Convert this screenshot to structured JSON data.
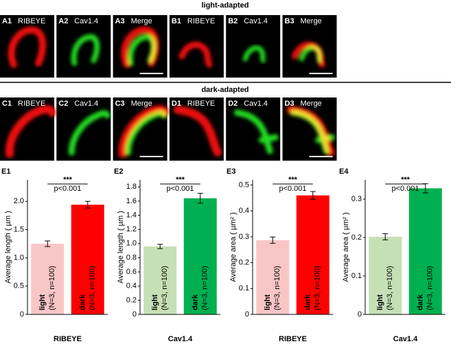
{
  "figure": {
    "rows": [
      {
        "title": "light-adapted",
        "panels": [
          {
            "id": "A1",
            "name": "RIBEYE"
          },
          {
            "id": "A2",
            "name": "Cav1.4"
          },
          {
            "id": "A3",
            "name": "Merge"
          },
          {
            "id": "B1",
            "name": "RIBEYE"
          },
          {
            "id": "B2",
            "name": "Cav1.4"
          },
          {
            "id": "B3",
            "name": "Merge"
          }
        ]
      },
      {
        "title": "dark-adapted",
        "panels": [
          {
            "id": "C1",
            "name": "RIBEYE"
          },
          {
            "id": "C2",
            "name": "Cav1.4"
          },
          {
            "id": "C3",
            "name": "Merge"
          },
          {
            "id": "D1",
            "name": "RIBEYE"
          },
          {
            "id": "D2",
            "name": "Cav1.4"
          },
          {
            "id": "D3",
            "name": "Merge"
          }
        ]
      }
    ]
  },
  "chart_data": [
    {
      "type": "bar",
      "panel": "E1",
      "ylabel": "Average length ( µm )",
      "xlabel": "RIBEYE",
      "significance": "***",
      "p_label": "p<0.001",
      "categories": [
        "light",
        "dark"
      ],
      "category_notes": [
        "(N=3, n=100)",
        "(N=3, n=100)"
      ],
      "values": [
        1.25,
        1.94
      ],
      "errors": [
        0.05,
        0.06
      ],
      "colors": [
        "#f9c6c6",
        "#ff0000"
      ],
      "ylim": [
        0,
        2.38
      ],
      "yticks": [
        0,
        0.5,
        {
          "value": 1,
          "label": "1.0"
        },
        1.5,
        {
          "value": 2,
          "label": "2.0"
        }
      ]
    },
    {
      "type": "bar",
      "panel": "E2",
      "ylabel": "Average length ( µm )",
      "xlabel": "Cav1.4",
      "significance": "***",
      "p_label": "p<0.001",
      "categories": [
        "light",
        "dark"
      ],
      "category_notes": [
        "(N=3, n=100)",
        "(N=3, n=100)"
      ],
      "values": [
        0.96,
        1.64
      ],
      "errors": [
        0.03,
        0.07
      ],
      "colors": [
        "#c6e0b6",
        "#00b050"
      ],
      "ylim": [
        0,
        1.9
      ],
      "yticks": [
        0,
        0.2,
        0.4,
        0.6,
        0.8,
        {
          "value": 1,
          "label": "1.0"
        },
        1.2,
        1.4,
        1.6,
        1.8
      ]
    },
    {
      "type": "bar",
      "panel": "E3",
      "ylabel": "Average area ( µm² )",
      "xlabel": "RIBEYE",
      "significance": "***",
      "p_label": "p<0.001",
      "categories": [
        "light",
        "dark"
      ],
      "category_notes": [
        "(N=3, n=100)",
        "(N=3, n=100)"
      ],
      "values": [
        0.287,
        0.46
      ],
      "errors": [
        0.012,
        0.015
      ],
      "colors": [
        "#f9c6c6",
        "#ff0000"
      ],
      "ylim": [
        0,
        0.52
      ],
      "yticks": [
        0,
        0.1,
        0.2,
        0.3,
        0.4,
        0.5
      ]
    },
    {
      "type": "bar",
      "panel": "E4",
      "ylabel": "Average area ( µm² )",
      "xlabel": "Cav1.4",
      "significance": "***",
      "p_label": "p<0.001",
      "categories": [
        "light",
        "dark"
      ],
      "category_notes": [
        "(N=3, n=100)",
        "(N=3, n=100)"
      ],
      "values": [
        0.202,
        0.328
      ],
      "errors": [
        0.008,
        0.012
      ],
      "colors": [
        "#c6e0b6",
        "#00b050"
      ],
      "ylim": [
        0,
        0.35
      ],
      "yticks": [
        0,
        0.1,
        0.2,
        0.3
      ]
    }
  ]
}
